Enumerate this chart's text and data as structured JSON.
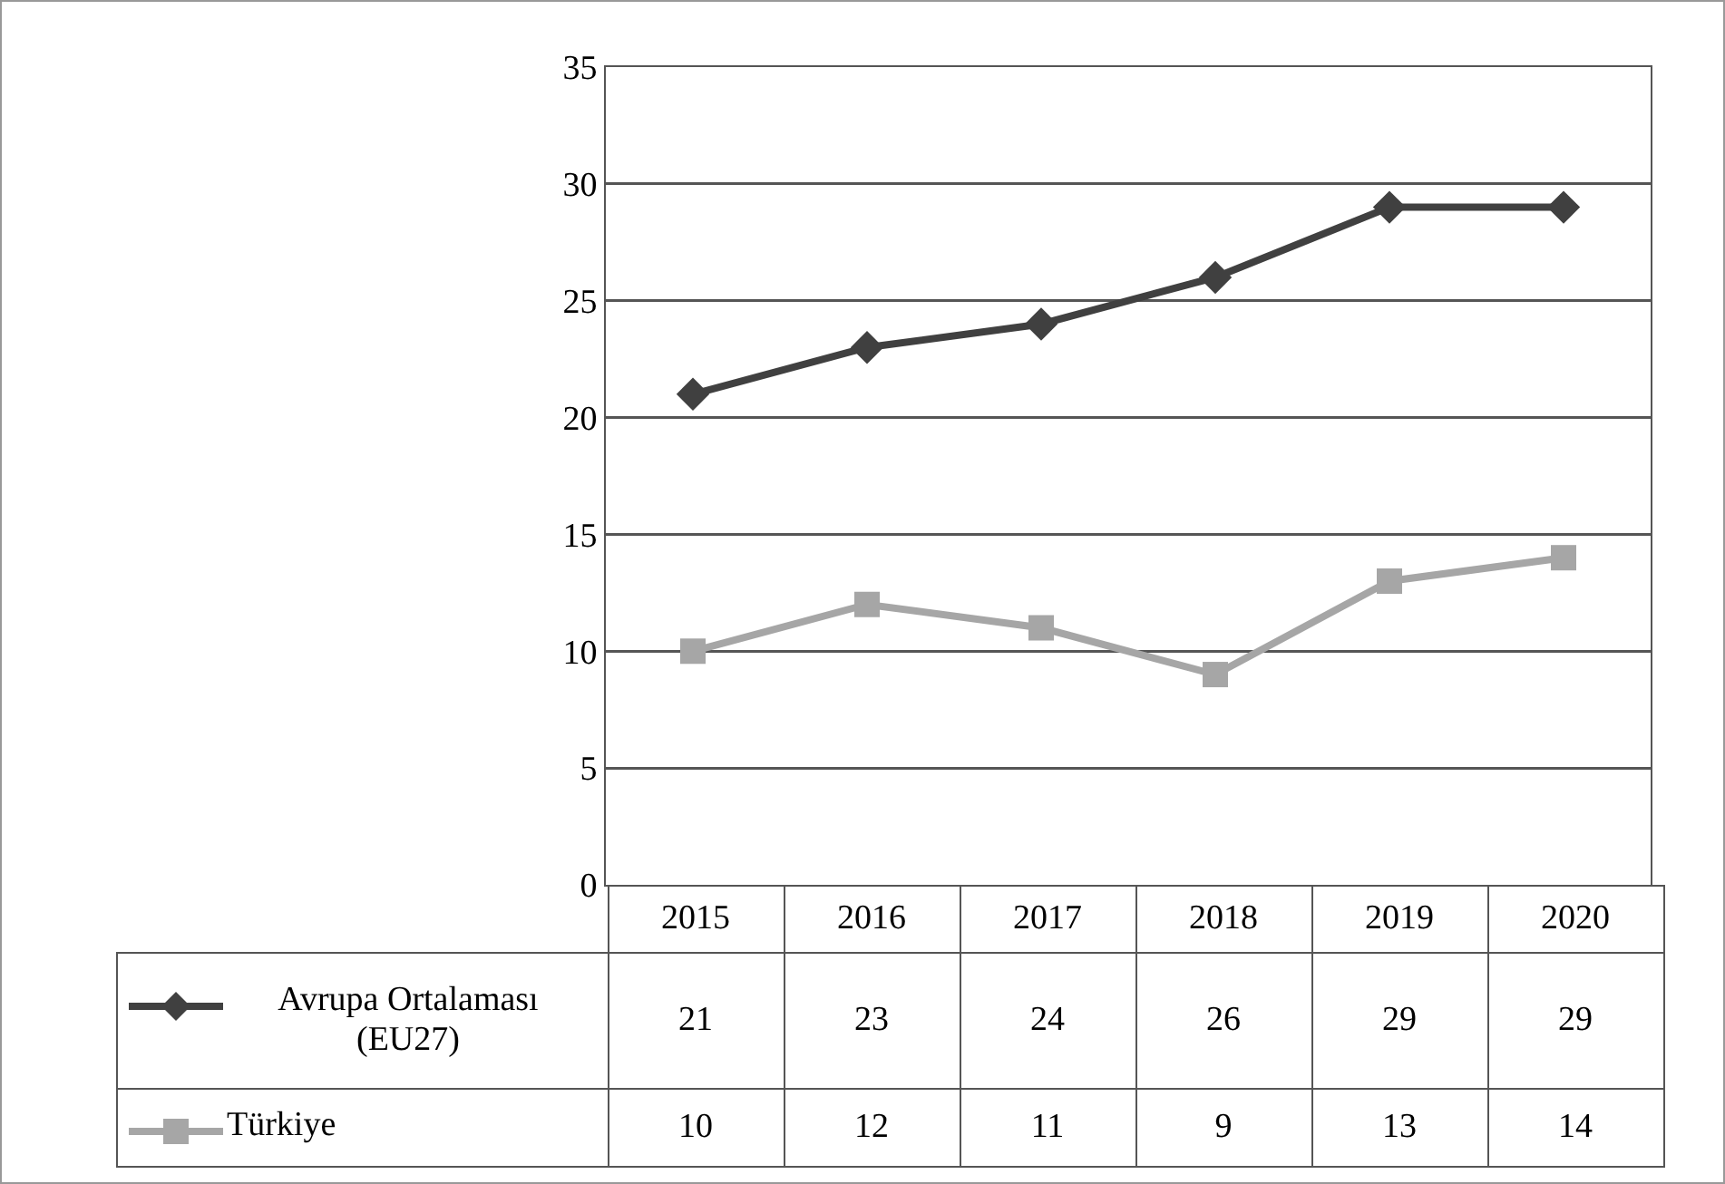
{
  "chart_data": {
    "type": "line",
    "categories": [
      "2015",
      "2016",
      "2017",
      "2018",
      "2019",
      "2020"
    ],
    "series": [
      {
        "name": "Avrupa Ortalaması (EU27)",
        "color": "#404040",
        "marker": "diamond",
        "values": [
          21,
          23,
          24,
          26,
          29,
          29
        ]
      },
      {
        "name": "Türkiye",
        "color": "#a6a6a6",
        "marker": "square",
        "values": [
          10,
          12,
          11,
          9,
          13,
          14
        ]
      }
    ],
    "ylim": [
      0,
      35
    ],
    "yticks": [
      0,
      5,
      10,
      15,
      20,
      25,
      30,
      35
    ],
    "grid": "y",
    "legend": "bottom left",
    "data_labels": true,
    "line_style": "solid"
  }
}
